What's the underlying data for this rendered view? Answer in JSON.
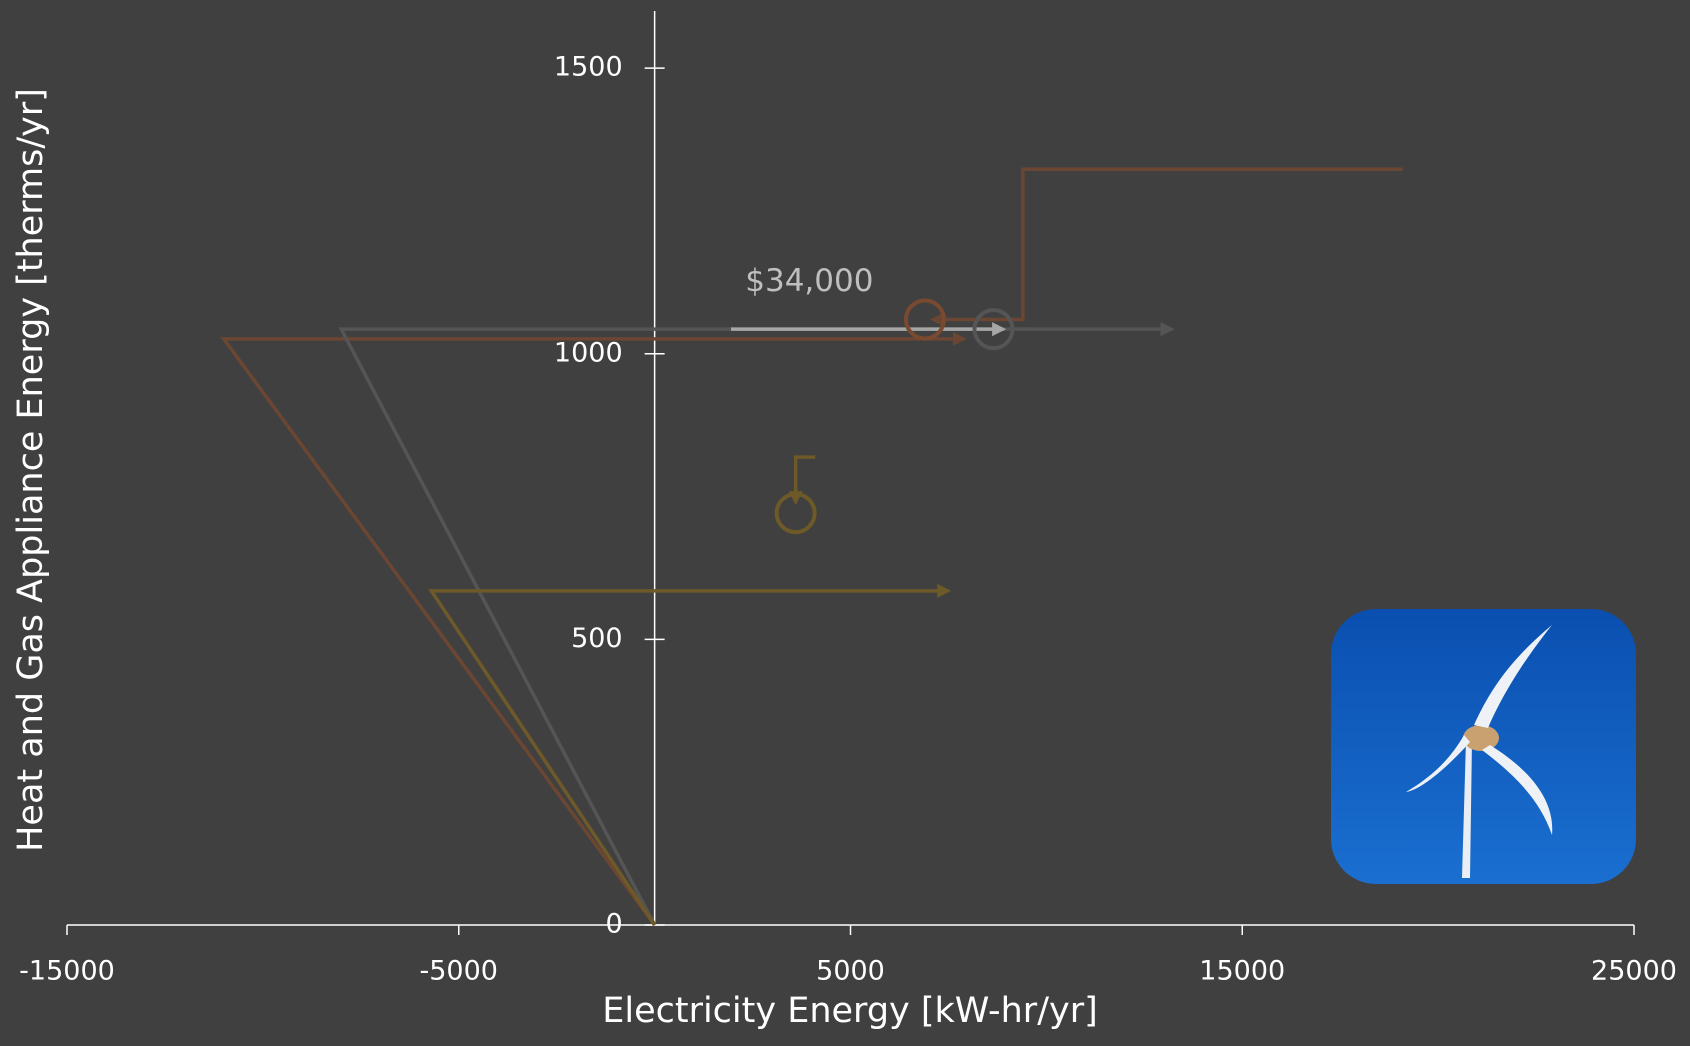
{
  "chart_data": {
    "type": "line",
    "x_label": "Electricity Energy [kW-hr/yr]",
    "y_label": "Heat and Gas Appliance Energy [therms/yr]",
    "xlim": [
      -15000,
      25000
    ],
    "xticks": [
      -15000,
      -5000,
      5000,
      15000,
      25000
    ],
    "ylim": [
      0,
      1600
    ],
    "yticks": [
      0,
      500,
      1000,
      1500
    ],
    "series": [
      {
        "color": "#6b4632",
        "arrow": true,
        "x": [
          0,
          -11000,
          7900
        ],
        "y": [
          0,
          1026,
          1026
        ]
      },
      {
        "color": "#555555",
        "arrow": true,
        "x": [
          0,
          -8000,
          13200
        ],
        "y": [
          0,
          1043,
          1043
        ]
      },
      {
        "color": "#6e5a28",
        "arrow": true,
        "x": [
          0,
          -5700,
          7500
        ],
        "y": [
          0,
          585,
          585
        ]
      },
      {
        "color": "#6b4632",
        "arrow": true,
        "x": [
          19100,
          9400,
          9400,
          7100
        ],
        "y": [
          1323,
          1323,
          1060,
          1060
        ]
      },
      {
        "color": "#a6a6a6",
        "arrow": true,
        "x": [
          1950,
          8900
        ],
        "y": [
          1043,
          1043
        ]
      },
      {
        "color": "#6e5a28",
        "arrow": true,
        "x": [
          4100,
          3600,
          3600
        ],
        "y": [
          819,
          819,
          740
        ]
      }
    ],
    "points": {
      "x": [
        6900,
        8650,
        3600
      ],
      "y": [
        1060,
        1043,
        721
      ],
      "colors": [
        "#7a4a30",
        "#555555",
        "#6e5a28"
      ]
    },
    "annotation": {
      "text": "$34,000",
      "x": 3950,
      "y": 1125
    }
  }
}
